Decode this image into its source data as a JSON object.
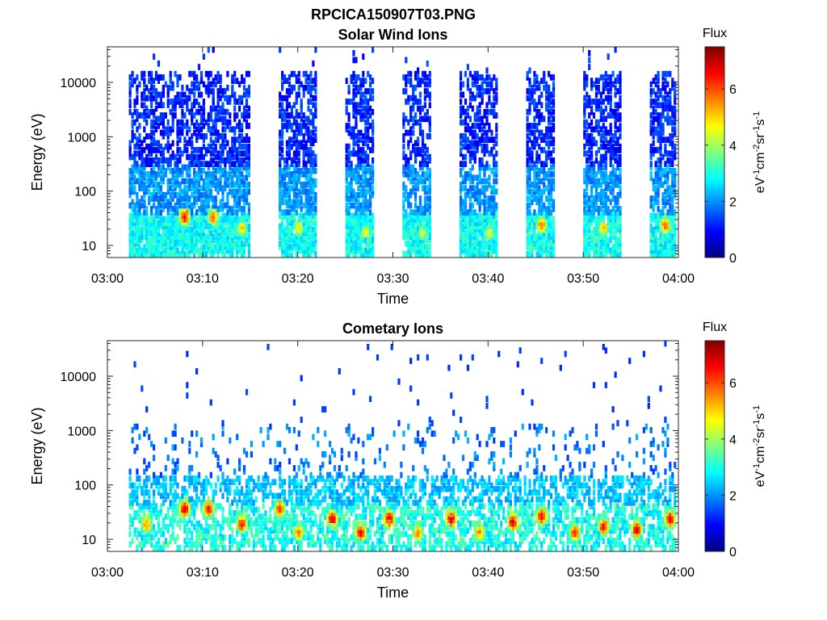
{
  "figure_title": "RPCICA150907T03.PNG",
  "chart_data": [
    {
      "type": "heatmap",
      "title": "Solar Wind Ions",
      "xlabel": "Time",
      "ylabel": "Energy (eV)",
      "x_ticks": [
        "03:00",
        "03:10",
        "03:20",
        "03:30",
        "03:40",
        "03:50",
        "04:00"
      ],
      "xlim": [
        "03:00",
        "04:00"
      ],
      "yscale": "log",
      "ylim": [
        6,
        45000
      ],
      "y_ticks": [
        10,
        100,
        1000,
        10000
      ],
      "y_tick_labels": [
        "10",
        "100",
        "1000",
        "10000"
      ],
      "colorbar": {
        "title": "Flux",
        "label": "eV-1cm-2sr-1s-1",
        "range": [
          0,
          7.5
        ],
        "ticks": [
          "0",
          "2",
          "4",
          "6"
        ],
        "colormap": "jet"
      },
      "data_gaps": [
        [
          "03:00",
          "03:02"
        ],
        [
          "03:15",
          "03:18"
        ],
        [
          "03:22",
          "03:25"
        ],
        [
          "03:28",
          "03:31"
        ],
        [
          "03:34",
          "03:37"
        ],
        [
          "03:41",
          "03:44"
        ],
        [
          "03:47",
          "03:50"
        ],
        [
          "03:54",
          "03:57"
        ]
      ],
      "features": [
        {
          "time": "03:08",
          "energy_eV": 35,
          "flux": 6.8
        },
        {
          "time": "03:11",
          "energy_eV": 35,
          "flux": 6.2
        },
        {
          "time": "03:14",
          "energy_eV": 22,
          "flux": 5.5
        },
        {
          "time": "03:20",
          "energy_eV": 22,
          "flux": 5.0
        },
        {
          "time": "03:27",
          "energy_eV": 18,
          "flux": 5.0
        },
        {
          "time": "03:33",
          "energy_eV": 18,
          "flux": 4.8
        },
        {
          "time": "03:40",
          "energy_eV": 18,
          "flux": 4.8
        },
        {
          "time": "03:45.5",
          "energy_eV": 25,
          "flux": 6.0
        },
        {
          "time": "03:52",
          "energy_eV": 22,
          "flux": 5.5
        },
        {
          "time": "03:58.5",
          "energy_eV": 25,
          "flux": 6.2
        }
      ]
    },
    {
      "type": "heatmap",
      "title": "Cometary Ions",
      "xlabel": "Time",
      "ylabel": "Energy (eV)",
      "x_ticks": [
        "03:00",
        "03:10",
        "03:20",
        "03:30",
        "03:40",
        "03:50",
        "04:00"
      ],
      "xlim": [
        "03:00",
        "04:00"
      ],
      "yscale": "log",
      "ylim": [
        6,
        45000
      ],
      "y_ticks": [
        10,
        100,
        1000,
        10000
      ],
      "y_tick_labels": [
        "10",
        "100",
        "1000",
        "10000"
      ],
      "colorbar": {
        "title": "Flux",
        "label": "eV-1cm-2sr-1s-1",
        "range": [
          0,
          7.5
        ],
        "ticks": [
          "0",
          "2",
          "4",
          "6"
        ],
        "colormap": "jet"
      },
      "features": [
        {
          "time": "03:04",
          "energy_eV": 20,
          "flux": 6.0
        },
        {
          "time": "03:08",
          "energy_eV": 38,
          "flux": 7.2
        },
        {
          "time": "03:10.5",
          "energy_eV": 38,
          "flux": 6.8
        },
        {
          "time": "03:14",
          "energy_eV": 20,
          "flux": 6.8
        },
        {
          "time": "03:18",
          "energy_eV": 38,
          "flux": 6.5
        },
        {
          "time": "03:20",
          "energy_eV": 14,
          "flux": 6.0
        },
        {
          "time": "03:23.5",
          "energy_eV": 25,
          "flux": 7.2
        },
        {
          "time": "03:26.5",
          "energy_eV": 14,
          "flux": 7.0
        },
        {
          "time": "03:29.5",
          "energy_eV": 25,
          "flux": 7.2
        },
        {
          "time": "03:32.5",
          "energy_eV": 14,
          "flux": 6.0
        },
        {
          "time": "03:36",
          "energy_eV": 25,
          "flux": 7.2
        },
        {
          "time": "03:39",
          "energy_eV": 14,
          "flux": 6.0
        },
        {
          "time": "03:42.5",
          "energy_eV": 22,
          "flux": 7.2
        },
        {
          "time": "03:45.5",
          "energy_eV": 28,
          "flux": 7.0
        },
        {
          "time": "03:49",
          "energy_eV": 14,
          "flux": 6.5
        },
        {
          "time": "03:52",
          "energy_eV": 18,
          "flux": 6.8
        },
        {
          "time": "03:55.5",
          "energy_eV": 16,
          "flux": 7.2
        },
        {
          "time": "03:59",
          "energy_eV": 25,
          "flux": 7.0
        }
      ]
    }
  ]
}
